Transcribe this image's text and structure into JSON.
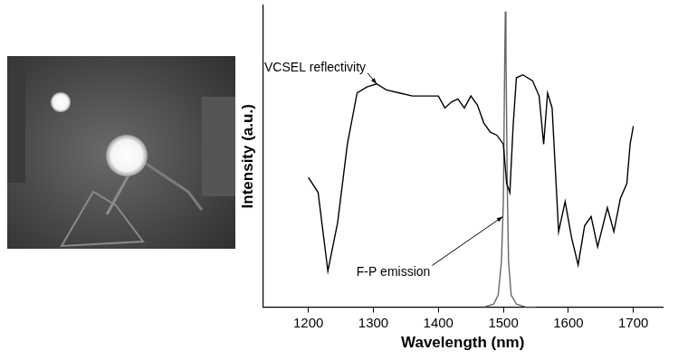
{
  "chart_data": {
    "type": "line",
    "x_label": "Wavelength (nm)",
    "y_label": "Intensity (a.u.)",
    "xlim": [
      1130,
      1745
    ],
    "xticks": [
      1200,
      1300,
      1400,
      1500,
      1600,
      1700
    ],
    "ylim": [
      0,
      100
    ],
    "tick_labels": "x",
    "grid": false,
    "series": [
      {
        "color": "#000000",
        "x": [
          1200,
          1215,
          1230,
          1245,
          1260,
          1275,
          1290,
          1305,
          1320,
          1340,
          1360,
          1380,
          1400,
          1410,
          1420,
          1430,
          1440,
          1450,
          1460,
          1470,
          1480,
          1490,
          1500,
          1505,
          1510,
          1515,
          1520,
          1530,
          1545,
          1555,
          1562,
          1568,
          1575,
          1585,
          1595,
          1605,
          1615,
          1625,
          1635,
          1645,
          1660,
          1670,
          1680,
          1690,
          1695,
          1700
        ],
        "values": [
          43,
          38,
          12,
          28,
          54,
          71,
          73,
          74,
          72,
          71,
          70,
          70,
          70,
          66,
          68,
          69,
          66,
          70,
          67,
          61,
          58,
          57,
          54,
          41,
          38,
          60,
          76,
          77,
          75,
          70,
          54,
          71,
          66,
          25,
          35,
          23,
          14,
          27,
          30,
          20,
          33,
          25,
          36,
          41,
          54,
          60
        ]
      },
      {
        "color": "#666666",
        "x": [
          1470,
          1485,
          1492,
          1497,
          1500,
          1502,
          1503,
          1504,
          1506,
          1508,
          1512,
          1520,
          1535,
          1550
        ],
        "values": [
          0,
          1,
          4,
          15,
          35,
          80,
          98,
          85,
          40,
          15,
          4,
          1,
          0,
          0
        ]
      }
    ],
    "annotations": [
      {
        "text": "VCSEL reflectivity",
        "x": 1305,
        "y": 74
      },
      {
        "text": "F-P emission",
        "x": 1499,
        "y": 30
      }
    ]
  }
}
